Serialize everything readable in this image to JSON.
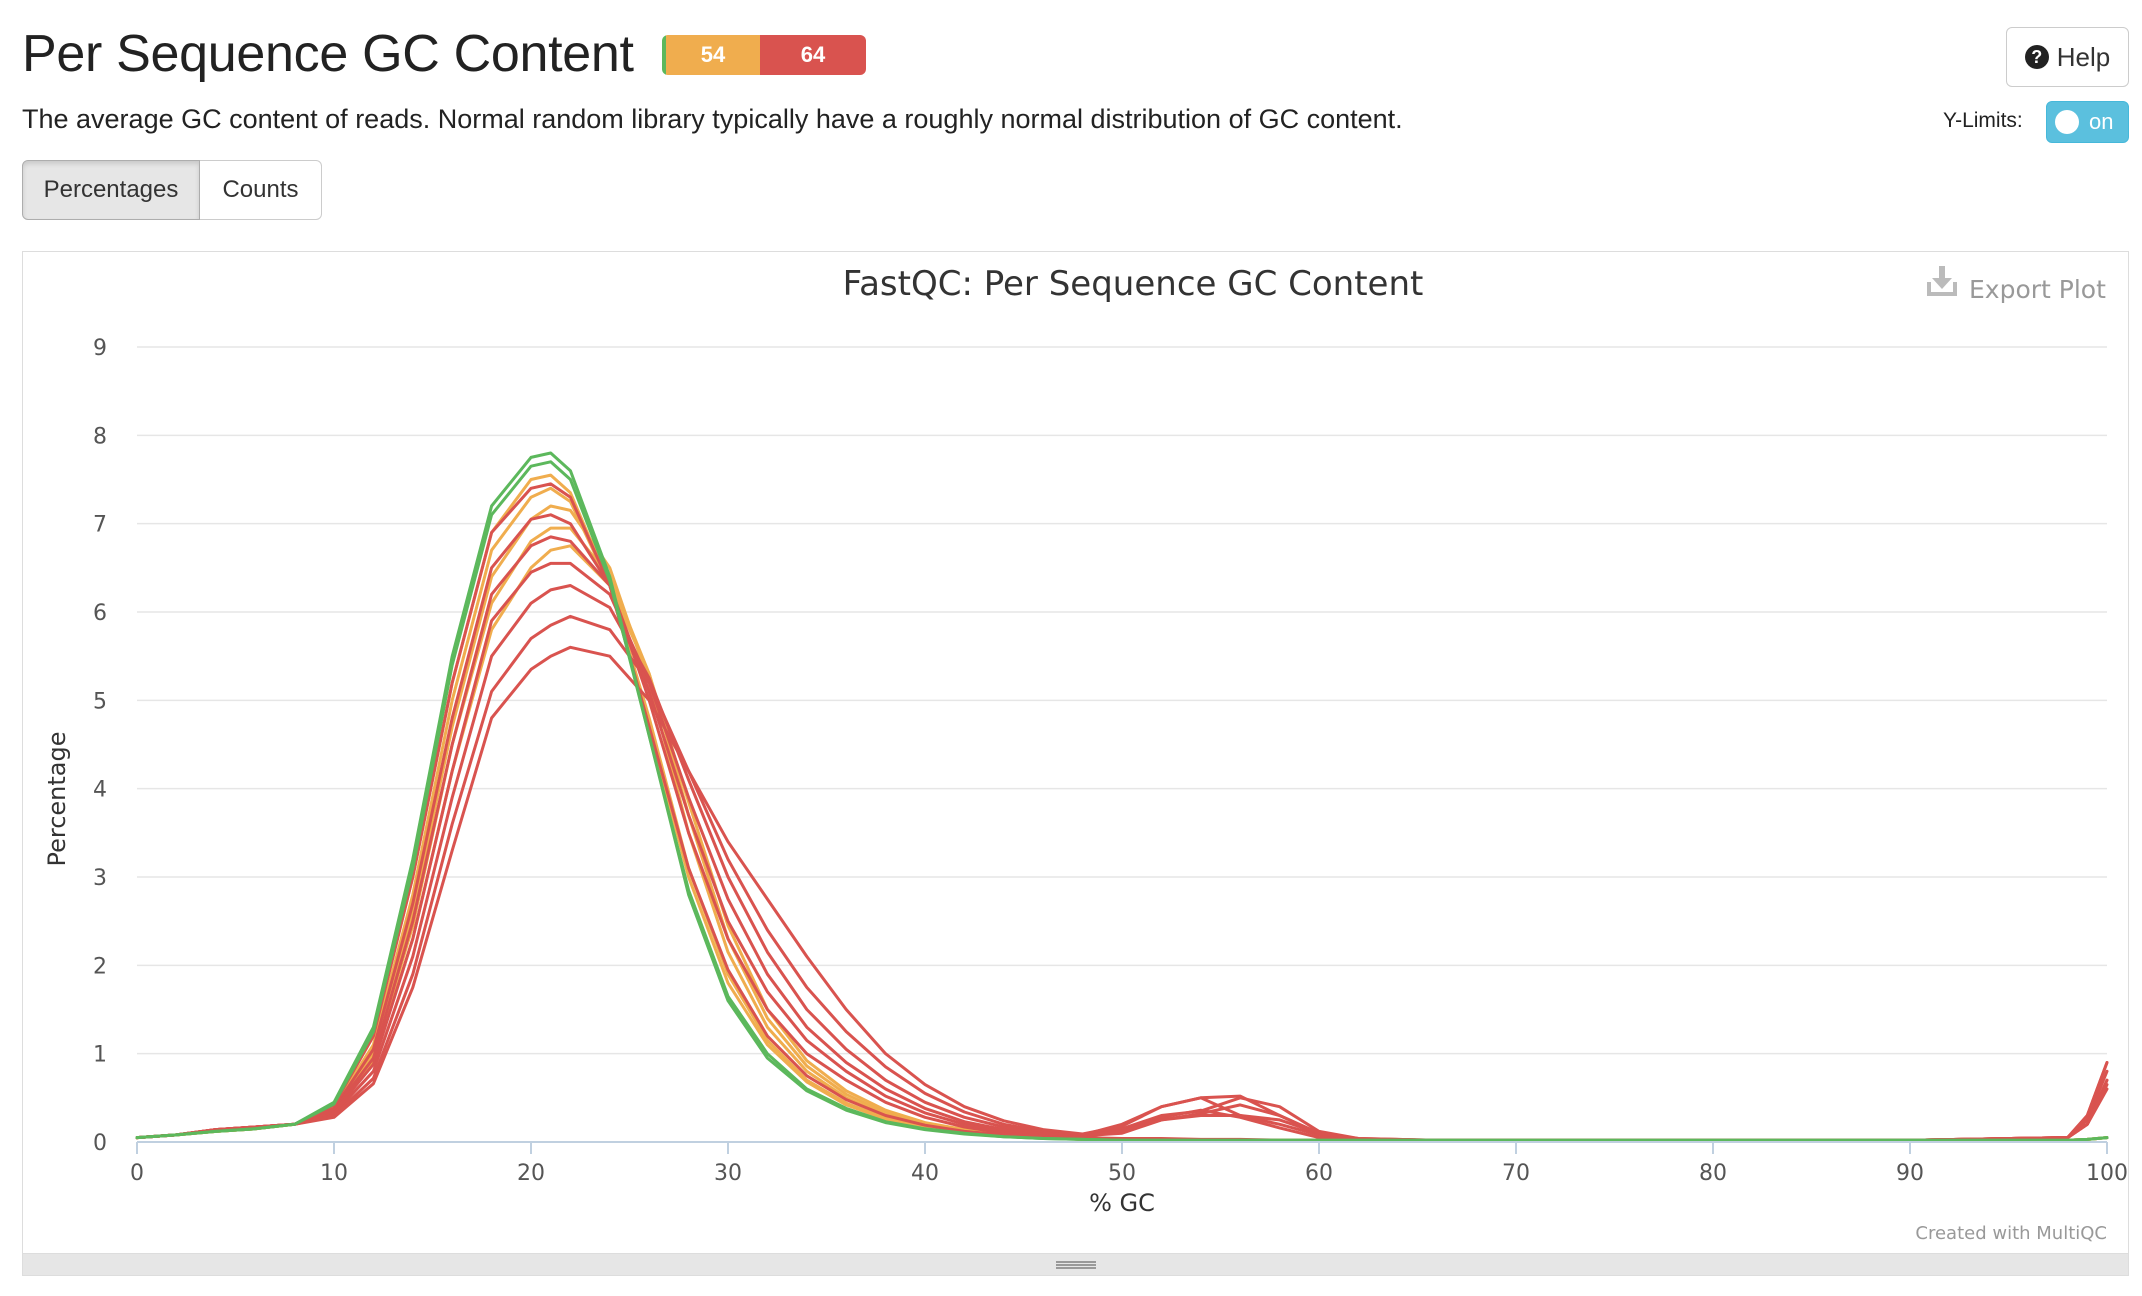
{
  "header": {
    "title": "Per Sequence GC Content",
    "description": "The average GC content of reads. Normal random library typically have a roughly normal distribution of GC content.",
    "help_label": "Help",
    "ylimits_label": "Y-Limits:",
    "toggle_label": "on"
  },
  "status_badges": {
    "pass": "",
    "warn": "54",
    "fail": "64",
    "colors": {
      "pass": "#5cb85c",
      "warn": "#f0ad4e",
      "fail": "#d9534f"
    }
  },
  "tabs": [
    {
      "label": "Percentages",
      "active": true
    },
    {
      "label": "Counts",
      "active": false
    }
  ],
  "plot": {
    "export_label": "Export Plot",
    "credit": "Created with MultiQC"
  },
  "chart_data": {
    "type": "line",
    "title": "FastQC: Per Sequence GC Content",
    "xlabel": "% GC",
    "ylabel": "Percentage",
    "xlim": [
      0,
      100
    ],
    "ylim": [
      0,
      9
    ],
    "xticks": [
      0,
      10,
      20,
      30,
      40,
      50,
      60,
      70,
      80,
      90,
      100
    ],
    "yticks": [
      0,
      1,
      2,
      3,
      4,
      5,
      6,
      7,
      8,
      9
    ],
    "grid": true,
    "legend": "none",
    "x": [
      0,
      2,
      4,
      6,
      8,
      10,
      12,
      14,
      16,
      18,
      20,
      21,
      22,
      24,
      26,
      28,
      30,
      32,
      34,
      36,
      38,
      40,
      42,
      44,
      46,
      48,
      50,
      52,
      54,
      56,
      58,
      60,
      62,
      66,
      70,
      80,
      90,
      98,
      99,
      100
    ],
    "series": [
      {
        "status": "pass",
        "color": "#5cb85c",
        "values": [
          0.05,
          0.08,
          0.12,
          0.15,
          0.2,
          0.45,
          1.3,
          3.2,
          5.5,
          7.2,
          7.75,
          7.8,
          7.6,
          6.4,
          4.6,
          2.8,
          1.6,
          0.95,
          0.58,
          0.36,
          0.22,
          0.14,
          0.09,
          0.06,
          0.04,
          0.03,
          0.02,
          0.02,
          0.02,
          0.02,
          0.02,
          0.02,
          0.02,
          0.02,
          0.02,
          0.02,
          0.02,
          0.02,
          0.03,
          0.05
        ]
      },
      {
        "status": "pass",
        "color": "#5cb85c",
        "values": [
          0.05,
          0.08,
          0.12,
          0.15,
          0.2,
          0.43,
          1.25,
          3.1,
          5.4,
          7.1,
          7.65,
          7.7,
          7.5,
          6.35,
          4.6,
          2.85,
          1.65,
          1.0,
          0.6,
          0.38,
          0.23,
          0.15,
          0.1,
          0.06,
          0.04,
          0.03,
          0.02,
          0.02,
          0.02,
          0.02,
          0.02,
          0.02,
          0.02,
          0.02,
          0.02,
          0.02,
          0.02,
          0.02,
          0.03,
          0.05
        ]
      },
      {
        "status": "warn",
        "color": "#f0ad4e",
        "values": [
          0.05,
          0.08,
          0.12,
          0.15,
          0.2,
          0.42,
          1.2,
          3.0,
          5.2,
          6.9,
          7.5,
          7.55,
          7.35,
          6.3,
          4.7,
          3.0,
          1.8,
          1.1,
          0.68,
          0.42,
          0.26,
          0.16,
          0.1,
          0.07,
          0.05,
          0.03,
          0.02,
          0.02,
          0.02,
          0.02,
          0.02,
          0.02,
          0.02,
          0.02,
          0.02,
          0.02,
          0.02,
          0.02,
          0.03,
          0.05
        ]
      },
      {
        "status": "warn",
        "color": "#f0ad4e",
        "values": [
          0.05,
          0.08,
          0.12,
          0.15,
          0.2,
          0.4,
          1.1,
          2.8,
          5.0,
          6.7,
          7.3,
          7.4,
          7.25,
          6.3,
          4.8,
          3.1,
          1.9,
          1.15,
          0.7,
          0.44,
          0.27,
          0.17,
          0.11,
          0.07,
          0.05,
          0.03,
          0.02,
          0.02,
          0.02,
          0.02,
          0.02,
          0.02,
          0.02,
          0.02,
          0.02,
          0.02,
          0.02,
          0.02,
          0.03,
          0.05
        ]
      },
      {
        "status": "warn",
        "color": "#f0ad4e",
        "values": [
          0.05,
          0.08,
          0.12,
          0.15,
          0.2,
          0.38,
          1.0,
          2.6,
          4.7,
          6.4,
          7.05,
          7.2,
          7.15,
          6.5,
          5.2,
          3.5,
          2.15,
          1.3,
          0.8,
          0.5,
          0.3,
          0.19,
          0.12,
          0.08,
          0.05,
          0.03,
          0.02,
          0.02,
          0.02,
          0.02,
          0.02,
          0.02,
          0.02,
          0.02,
          0.02,
          0.02,
          0.02,
          0.02,
          0.03,
          0.05
        ]
      },
      {
        "status": "warn",
        "color": "#f0ad4e",
        "values": [
          0.05,
          0.08,
          0.12,
          0.15,
          0.2,
          0.36,
          0.95,
          2.45,
          4.5,
          6.1,
          6.8,
          6.95,
          6.95,
          6.4,
          5.3,
          3.7,
          2.3,
          1.4,
          0.86,
          0.54,
          0.33,
          0.2,
          0.13,
          0.08,
          0.05,
          0.03,
          0.02,
          0.02,
          0.02,
          0.02,
          0.02,
          0.02,
          0.02,
          0.02,
          0.02,
          0.02,
          0.02,
          0.02,
          0.03,
          0.05
        ]
      },
      {
        "status": "warn",
        "color": "#f0ad4e",
        "values": [
          0.05,
          0.08,
          0.12,
          0.15,
          0.2,
          0.35,
          0.9,
          2.3,
          4.2,
          5.8,
          6.5,
          6.7,
          6.75,
          6.3,
          5.3,
          3.85,
          2.45,
          1.5,
          0.92,
          0.58,
          0.36,
          0.22,
          0.14,
          0.09,
          0.06,
          0.04,
          0.02,
          0.02,
          0.02,
          0.02,
          0.02,
          0.02,
          0.02,
          0.02,
          0.02,
          0.02,
          0.02,
          0.02,
          0.03,
          0.05
        ]
      },
      {
        "status": "fail",
        "color": "#d9534f",
        "values": [
          0.05,
          0.08,
          0.14,
          0.17,
          0.2,
          0.42,
          1.2,
          3.0,
          5.2,
          6.9,
          7.4,
          7.45,
          7.3,
          6.3,
          4.7,
          3.1,
          1.95,
          1.2,
          0.75,
          0.48,
          0.3,
          0.19,
          0.12,
          0.08,
          0.06,
          0.05,
          0.04,
          0.04,
          0.03,
          0.03,
          0.02,
          0.02,
          0.02,
          0.02,
          0.02,
          0.02,
          0.02,
          0.05,
          0.2,
          0.6
        ]
      },
      {
        "status": "fail",
        "color": "#d9534f",
        "values": [
          0.05,
          0.08,
          0.14,
          0.17,
          0.2,
          0.38,
          1.05,
          2.7,
          4.8,
          6.5,
          7.05,
          7.1,
          7.0,
          6.3,
          5.0,
          3.5,
          2.3,
          1.5,
          1.0,
          0.7,
          0.45,
          0.28,
          0.17,
          0.1,
          0.07,
          0.06,
          0.12,
          0.28,
          0.36,
          0.28,
          0.16,
          0.05,
          0.03,
          0.02,
          0.02,
          0.02,
          0.02,
          0.05,
          0.3,
          0.9
        ]
      },
      {
        "status": "fail",
        "color": "#d9534f",
        "values": [
          0.05,
          0.08,
          0.14,
          0.17,
          0.2,
          0.36,
          0.95,
          2.5,
          4.5,
          6.2,
          6.75,
          6.85,
          6.8,
          6.3,
          5.1,
          3.7,
          2.5,
          1.7,
          1.15,
          0.8,
          0.52,
          0.33,
          0.2,
          0.12,
          0.08,
          0.07,
          0.1,
          0.25,
          0.32,
          0.42,
          0.3,
          0.1,
          0.04,
          0.02,
          0.02,
          0.02,
          0.02,
          0.05,
          0.25,
          0.8
        ]
      },
      {
        "status": "fail",
        "color": "#d9534f",
        "values": [
          0.05,
          0.08,
          0.14,
          0.17,
          0.2,
          0.34,
          0.88,
          2.3,
          4.2,
          5.9,
          6.45,
          6.55,
          6.55,
          6.2,
          5.2,
          3.9,
          2.75,
          1.9,
          1.3,
          0.9,
          0.6,
          0.38,
          0.23,
          0.14,
          0.09,
          0.08,
          0.2,
          0.4,
          0.5,
          0.3,
          0.2,
          0.08,
          0.03,
          0.02,
          0.02,
          0.02,
          0.02,
          0.05,
          0.2,
          0.7
        ]
      },
      {
        "status": "fail",
        "color": "#d9534f",
        "values": [
          0.05,
          0.08,
          0.14,
          0.17,
          0.2,
          0.32,
          0.8,
          2.1,
          3.9,
          5.5,
          6.1,
          6.25,
          6.3,
          6.05,
          5.25,
          4.1,
          3.0,
          2.15,
          1.5,
          1.05,
          0.7,
          0.45,
          0.28,
          0.17,
          0.1,
          0.08,
          0.15,
          0.3,
          0.35,
          0.5,
          0.4,
          0.12,
          0.04,
          0.02,
          0.02,
          0.02,
          0.02,
          0.05,
          0.2,
          0.7
        ]
      },
      {
        "status": "fail",
        "color": "#d9534f",
        "values": [
          0.05,
          0.08,
          0.14,
          0.17,
          0.2,
          0.3,
          0.72,
          1.9,
          3.6,
          5.1,
          5.7,
          5.85,
          5.95,
          5.8,
          5.2,
          4.2,
          3.2,
          2.4,
          1.75,
          1.25,
          0.85,
          0.55,
          0.34,
          0.2,
          0.12,
          0.08,
          0.12,
          0.25,
          0.3,
          0.3,
          0.25,
          0.1,
          0.03,
          0.02,
          0.02,
          0.02,
          0.02,
          0.05,
          0.2,
          0.65
        ]
      },
      {
        "status": "fail",
        "color": "#d9534f",
        "values": [
          0.05,
          0.08,
          0.14,
          0.17,
          0.2,
          0.28,
          0.66,
          1.75,
          3.3,
          4.8,
          5.35,
          5.5,
          5.6,
          5.5,
          5.0,
          4.2,
          3.4,
          2.75,
          2.1,
          1.5,
          1.0,
          0.65,
          0.4,
          0.24,
          0.14,
          0.09,
          0.18,
          0.4,
          0.5,
          0.52,
          0.3,
          0.1,
          0.03,
          0.02,
          0.02,
          0.02,
          0.02,
          0.05,
          0.3,
          0.9
        ]
      }
    ]
  }
}
